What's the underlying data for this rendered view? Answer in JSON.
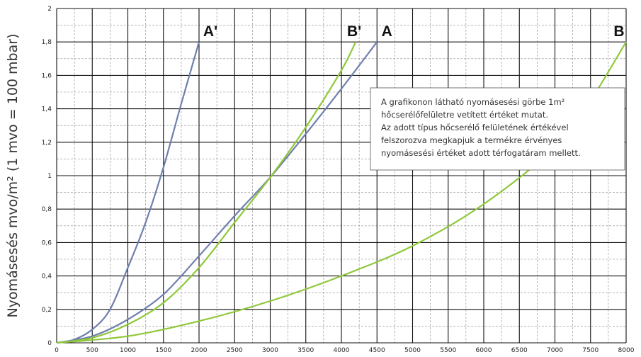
{
  "chart_data": {
    "type": "line",
    "title": "",
    "xlabel": "",
    "ylabel": "Nyomásesés mvo/m² (1 mvo = 100 mbar)",
    "xlim": [
      0,
      8000
    ],
    "ylim": [
      0,
      2
    ],
    "x_ticks": [
      "0",
      "500",
      "1000",
      "1500",
      "2000",
      "2500",
      "3000",
      "3500",
      "4000",
      "4500",
      "5000",
      "5500",
      "6000",
      "6500",
      "7000",
      "7500",
      "8000"
    ],
    "y_ticks": [
      "0",
      "0,2",
      "0,4",
      "0,6",
      "0,8",
      "1",
      "1,2",
      "1,4",
      "1,6",
      "1,8",
      "2"
    ],
    "grid": true,
    "series": [
      {
        "name": "A'",
        "color": "#6f7fae",
        "points": [
          [
            0,
            0
          ],
          [
            250,
            0.02
          ],
          [
            500,
            0.08
          ],
          [
            750,
            0.2
          ],
          [
            1000,
            0.45
          ],
          [
            1250,
            0.72
          ],
          [
            1500,
            1.05
          ],
          [
            1750,
            1.43
          ],
          [
            2000,
            1.8
          ]
        ]
      },
      {
        "name": "A",
        "color": "#6f7fae",
        "points": [
          [
            0,
            0
          ],
          [
            500,
            0.04
          ],
          [
            1000,
            0.14
          ],
          [
            1500,
            0.29
          ],
          [
            2000,
            0.52
          ],
          [
            2500,
            0.76
          ],
          [
            3000,
            0.99
          ],
          [
            3500,
            1.25
          ],
          [
            4000,
            1.52
          ],
          [
            4500,
            1.8
          ]
        ]
      },
      {
        "name": "B'",
        "color": "#8fc83a",
        "points": [
          [
            0,
            0
          ],
          [
            500,
            0.03
          ],
          [
            1000,
            0.11
          ],
          [
            1500,
            0.24
          ],
          [
            2000,
            0.45
          ],
          [
            2500,
            0.72
          ],
          [
            3000,
            0.99
          ],
          [
            3500,
            1.29
          ],
          [
            4000,
            1.63
          ],
          [
            4200,
            1.8
          ]
        ]
      },
      {
        "name": "B",
        "color": "#8fc83a",
        "points": [
          [
            0,
            0
          ],
          [
            1000,
            0.04
          ],
          [
            2000,
            0.13
          ],
          [
            3000,
            0.25
          ],
          [
            4000,
            0.4
          ],
          [
            5000,
            0.58
          ],
          [
            6000,
            0.83
          ],
          [
            7000,
            1.17
          ],
          [
            7500,
            1.45
          ],
          [
            8000,
            1.8
          ]
        ]
      }
    ],
    "label_positions": [
      {
        "series": "A'",
        "x": 2000,
        "y": 1.8
      },
      {
        "series": "B'",
        "x": 4200,
        "y": 1.8
      },
      {
        "series": "A",
        "x": 4500,
        "y": 1.8
      },
      {
        "series": "B",
        "x": 8000,
        "y": 1.8
      }
    ],
    "annotation": [
      "A grafikonon látható nyomásesési görbe 1m²",
      "hőcserélőfelületre vetített értéket mutat.",
      "Az adott típus hőcserélő felületének értékével",
      "felszorozva megkapjuk a termékre érvényes",
      "nyomásesési értéket adott térfogatáram mellett."
    ]
  }
}
